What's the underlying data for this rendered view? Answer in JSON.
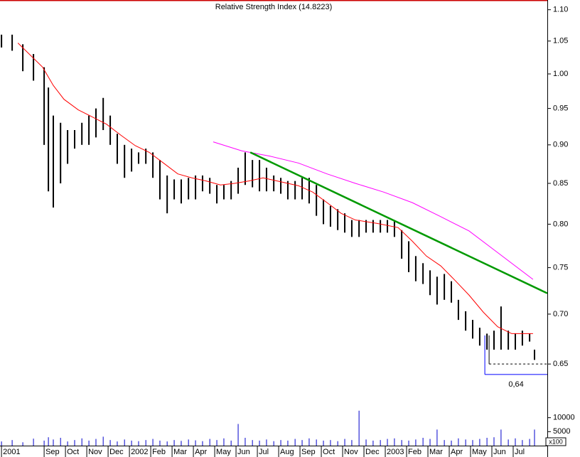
{
  "chart_data": {
    "type": "ohlc",
    "title": "Relative Strength Index (14.8223)",
    "log": true,
    "color": "#000000",
    "xlim": [
      -0.07,
      25.6
    ],
    "xticks": [
      {
        "value": 0,
        "label": "2001"
      },
      {
        "value": 2,
        "label": "Sep"
      },
      {
        "value": 3,
        "label": "Oct"
      },
      {
        "value": 4,
        "label": "Nov"
      },
      {
        "value": 5,
        "label": "Dec"
      },
      {
        "value": 6,
        "label": "2002"
      },
      {
        "value": 7,
        "label": "Feb"
      },
      {
        "value": 8,
        "label": "Mar"
      },
      {
        "value": 9,
        "label": "Apr"
      },
      {
        "value": 10,
        "label": "May"
      },
      {
        "value": 11,
        "label": "Jun"
      },
      {
        "value": 12,
        "label": "Jul"
      },
      {
        "value": 13,
        "label": "Aug"
      },
      {
        "value": 14,
        "label": "Sep"
      },
      {
        "value": 15,
        "label": "Oct"
      },
      {
        "value": 16,
        "label": "Nov"
      },
      {
        "value": 17,
        "label": "Dec"
      },
      {
        "value": 18,
        "label": "2003"
      },
      {
        "value": 19,
        "label": "Feb"
      },
      {
        "value": 20,
        "label": "Mar"
      },
      {
        "value": 21,
        "label": "Apr"
      },
      {
        "value": 22,
        "label": "May"
      },
      {
        "value": 23,
        "label": "Jun"
      },
      {
        "value": 24,
        "label": "Jul"
      }
    ],
    "ylim": [
      0.618,
      1.116
    ],
    "yticks": [
      0.65,
      {
        "value": 0.7,
        "label": "0.70"
      },
      0.75,
      {
        "value": 0.8,
        "label": "0.80"
      },
      0.85,
      {
        "value": 0.9,
        "label": "0.90"
      },
      0.95,
      {
        "value": 1,
        "label": "1.00"
      },
      1.05,
      {
        "value": 1.1,
        "label": "1.10"
      }
    ],
    "y2lim": [
      0,
      15000
    ],
    "y2ticks": [
      5000,
      10000
    ],
    "volume_unit": "x100",
    "volume_color": "#0000cc",
    "x": [
      0,
      0.5,
      1,
      1.5,
      2,
      2.2,
      2.43,
      2.77,
      3.1,
      3.43,
      3.77,
      4.1,
      4.43,
      4.77,
      5.1,
      5.43,
      5.77,
      6.1,
      6.43,
      6.77,
      7.1,
      7.43,
      7.77,
      8.1,
      8.43,
      8.77,
      9.1,
      9.43,
      9.77,
      10.1,
      10.43,
      10.77,
      11.1,
      11.43,
      11.77,
      12.1,
      12.43,
      12.77,
      13.1,
      13.43,
      13.77,
      14.1,
      14.43,
      14.77,
      15.1,
      15.43,
      15.77,
      16.1,
      16.43,
      16.77,
      17.1,
      17.43,
      17.77,
      18.1,
      18.43,
      18.77,
      19.1,
      19.43,
      19.77,
      20.1,
      20.43,
      20.77,
      21.1,
      21.43,
      21.77,
      22.1,
      22.43,
      22.77,
      23.1,
      23.43,
      23.77,
      24.1,
      24.43,
      24.77,
      25
    ],
    "high": [
      1.06,
      1.06,
      1.045,
      1.03,
      1.01,
      0.98,
      0.94,
      0.93,
      0.92,
      0.92,
      0.93,
      0.94,
      0.95,
      0.965,
      0.94,
      0.915,
      0.9,
      0.895,
      0.89,
      0.895,
      0.89,
      0.88,
      0.86,
      0.855,
      0.855,
      0.857,
      0.86,
      0.86,
      0.857,
      0.848,
      0.848,
      0.853,
      0.87,
      0.89,
      0.88,
      0.88,
      0.87,
      0.86,
      0.857,
      0.853,
      0.853,
      0.857,
      0.857,
      0.848,
      0.83,
      0.822,
      0.818,
      0.813,
      0.805,
      0.805,
      0.805,
      0.805,
      0.805,
      0.805,
      0.805,
      0.793,
      0.78,
      0.763,
      0.755,
      0.747,
      0.74,
      0.743,
      0.735,
      0.715,
      0.703,
      0.694,
      0.686,
      0.68,
      0.683,
      0.708,
      0.683,
      0.68,
      0.683,
      0.68,
      0.664
    ],
    "low": [
      1.04,
      1.035,
      1.004,
      0.99,
      0.9,
      0.84,
      0.82,
      0.85,
      0.875,
      0.895,
      0.9,
      0.9,
      0.91,
      0.92,
      0.9,
      0.875,
      0.857,
      0.865,
      0.875,
      0.875,
      0.857,
      0.83,
      0.813,
      0.83,
      0.825,
      0.83,
      0.83,
      0.84,
      0.837,
      0.825,
      0.83,
      0.83,
      0.837,
      0.848,
      0.845,
      0.84,
      0.84,
      0.84,
      0.837,
      0.83,
      0.83,
      0.83,
      0.825,
      0.81,
      0.8,
      0.797,
      0.793,
      0.79,
      0.785,
      0.785,
      0.79,
      0.79,
      0.79,
      0.79,
      0.785,
      0.76,
      0.745,
      0.735,
      0.732,
      0.72,
      0.71,
      0.715,
      0.712,
      0.694,
      0.683,
      0.675,
      0.668,
      0.664,
      0.664,
      0.664,
      0.664,
      0.664,
      0.668,
      0.672,
      0.654
    ],
    "volume": [
      1500,
      2000,
      1200,
      2500,
      1800,
      3000,
      2200,
      2800,
      1500,
      2000,
      2600,
      1800,
      2400,
      3200,
      2000,
      1500,
      2200,
      1800,
      1600,
      2000,
      2400,
      1800,
      1500,
      2000,
      1700,
      2200,
      1900,
      1600,
      2400,
      2000,
      2600,
      1800,
      7750,
      2800,
      2000,
      1800,
      2200,
      1600,
      2000,
      1800,
      2400,
      2000,
      2600,
      2200,
      1800,
      2000,
      1600,
      2400,
      2000,
      12500,
      2200,
      1800,
      2000,
      2400,
      2600,
      2000,
      1800,
      2200,
      2800,
      2400,
      5750,
      2000,
      1800,
      2600,
      2200,
      2000,
      2400,
      2800,
      3000,
      5750,
      2200,
      2600,
      2000,
      2400,
      5750
    ],
    "lines": [
      {
        "color": "#ff0000",
        "width": 1,
        "x": [
          0.77,
          1.93,
          2.43,
          2.93,
          3.6,
          4.27,
          4.93,
          5.6,
          6.27,
          6.93,
          7.6,
          8.27,
          8.93,
          9.6,
          10.27,
          10.93,
          11.6,
          12.27,
          12.93,
          13.93,
          14.6,
          15.27,
          15.93,
          16.6,
          17.6,
          18.6,
          19.27,
          19.93,
          20.6,
          21.27,
          21.93,
          22.6,
          23.27,
          23.93,
          24.93
        ],
        "values": [
          1.047,
          1.01,
          0.983,
          0.963,
          0.948,
          0.938,
          0.928,
          0.913,
          0.899,
          0.89,
          0.876,
          0.862,
          0.857,
          0.853,
          0.848,
          0.85,
          0.853,
          0.857,
          0.853,
          0.847,
          0.839,
          0.826,
          0.813,
          0.805,
          0.801,
          0.796,
          0.78,
          0.763,
          0.752,
          0.736,
          0.72,
          0.702,
          0.687,
          0.68,
          0.68
        ]
      },
      {
        "color": "#ff00ff",
        "width": 1,
        "x": [
          9.93,
          11.27,
          12.6,
          13.93,
          15.27,
          16.6,
          17.93,
          19.27,
          20.6,
          21.93,
          23.27,
          24.93
        ],
        "values": [
          0.904,
          0.892,
          0.885,
          0.876,
          0.862,
          0.85,
          0.839,
          0.826,
          0.809,
          0.792,
          0.767,
          0.737
        ]
      },
      {
        "color": "#009900",
        "width": 2.5,
        "x": [
          11.67,
          25.6
        ],
        "values": [
          0.89,
          0.722
        ]
      }
    ],
    "levels": [
      {
        "value": 0.65,
        "color": "#000000",
        "dashed": true,
        "x": [
          22.87,
          25.6
        ]
      },
      {
        "value": 0.64,
        "label": "0,64",
        "color": "#0000ff",
        "dashed": false,
        "x": [
          22.67,
          25.6
        ]
      }
    ]
  }
}
